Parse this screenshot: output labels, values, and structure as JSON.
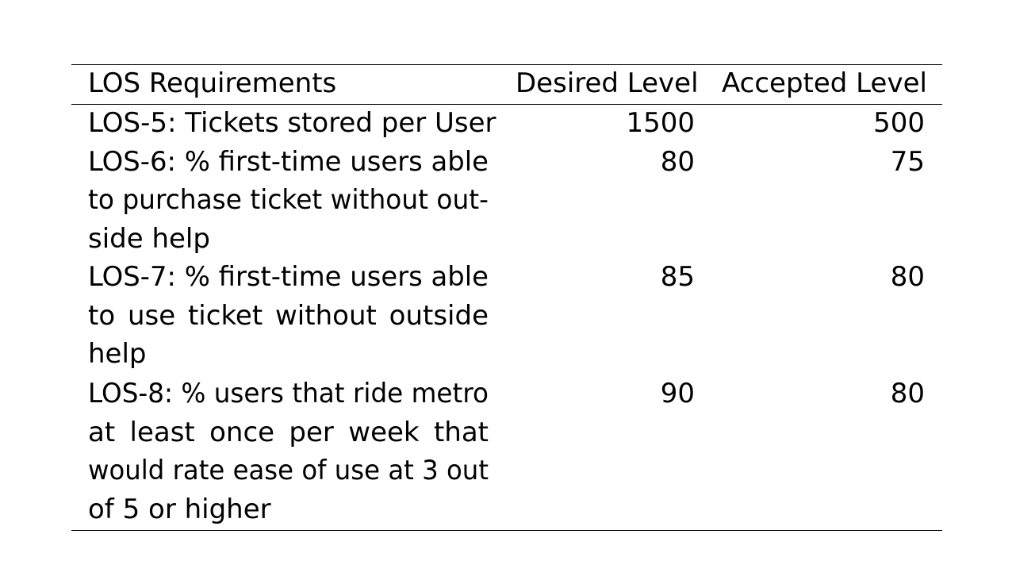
{
  "table": {
    "headers": [
      "LOS Requirements",
      "Desired Level",
      "Accepted Level"
    ],
    "rows": [
      {
        "requirement_lines": [
          "LOS-5: Tickets stored per User"
        ],
        "desired": "1500",
        "accepted": "500"
      },
      {
        "requirement_lines": [
          "LOS-6: % first-time users able",
          "to purchase ticket without out-",
          "side help"
        ],
        "desired": "80",
        "accepted": "75"
      },
      {
        "requirement_lines": [
          "LOS-7: % first-time users able",
          "to use ticket without outside",
          "help"
        ],
        "desired": "85",
        "accepted": "80"
      },
      {
        "requirement_lines": [
          "LOS-8: % users that ride metro",
          "at least once per week that",
          "would rate ease of use at 3 out",
          "of 5 or higher"
        ],
        "desired": "90",
        "accepted": "80"
      }
    ]
  }
}
